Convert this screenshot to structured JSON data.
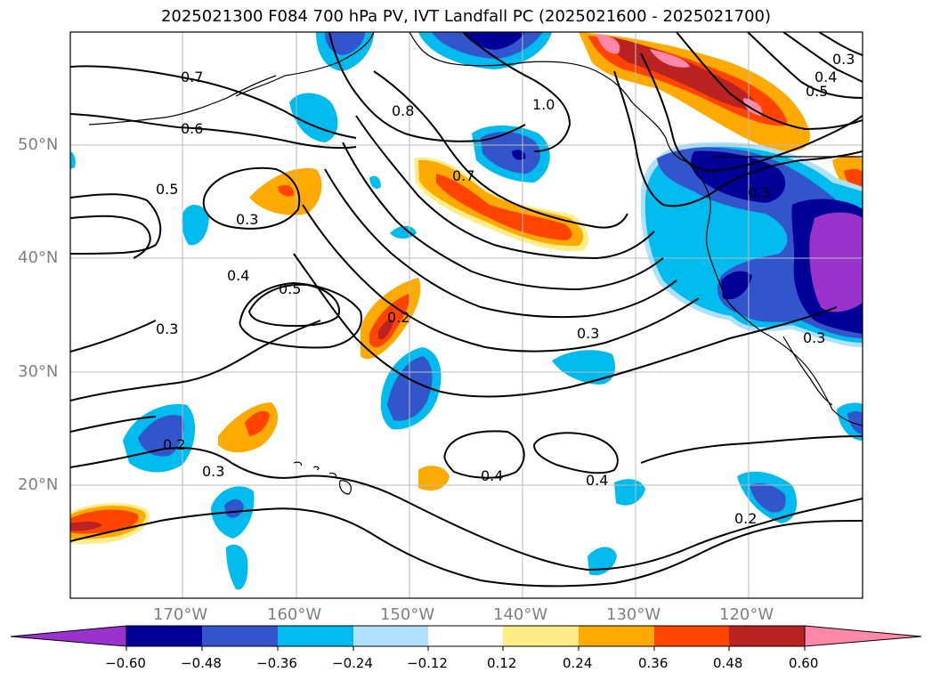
{
  "title": "2025021300 F084 700 hPa PV, IVT Landfall PC (2025021600 - 2025021700)",
  "colors": {
    "below_min": "#9933cc",
    "levels": [
      "#000099",
      "#3355cc",
      "#00bbee",
      "#b0e0ff",
      "#ffffff",
      "#ffee88",
      "#ffaa00",
      "#ff4400",
      "#bb2222",
      "#ff88aa"
    ],
    "contour": "#000000",
    "coast": "#000000",
    "grid": "#bbbbbb",
    "axis_text": "#808080"
  },
  "lat_labels": [
    "50°N",
    "40°N",
    "30°N",
    "20°N"
  ],
  "lon_labels": [
    "170°W",
    "160°W",
    "150°W",
    "140°W",
    "130°W",
    "120°W"
  ],
  "colorbar": {
    "ticks": [
      "−0.60",
      "−0.48",
      "−0.36",
      "−0.24",
      "−0.12",
      "0.12",
      "0.24",
      "0.36",
      "0.48",
      "0.60"
    ]
  },
  "contour_labels": [
    "0.7",
    "0.6",
    "0.5",
    "0.3",
    "0.4",
    "0.5",
    "0.3",
    "0.8",
    "1.0",
    "0.7",
    "0.2",
    "0.3",
    "0.4",
    "0.4",
    "0.2",
    "0.2",
    "0.3",
    "0.3",
    "0.4",
    "0.5",
    "0.3",
    "0.3"
  ]
}
